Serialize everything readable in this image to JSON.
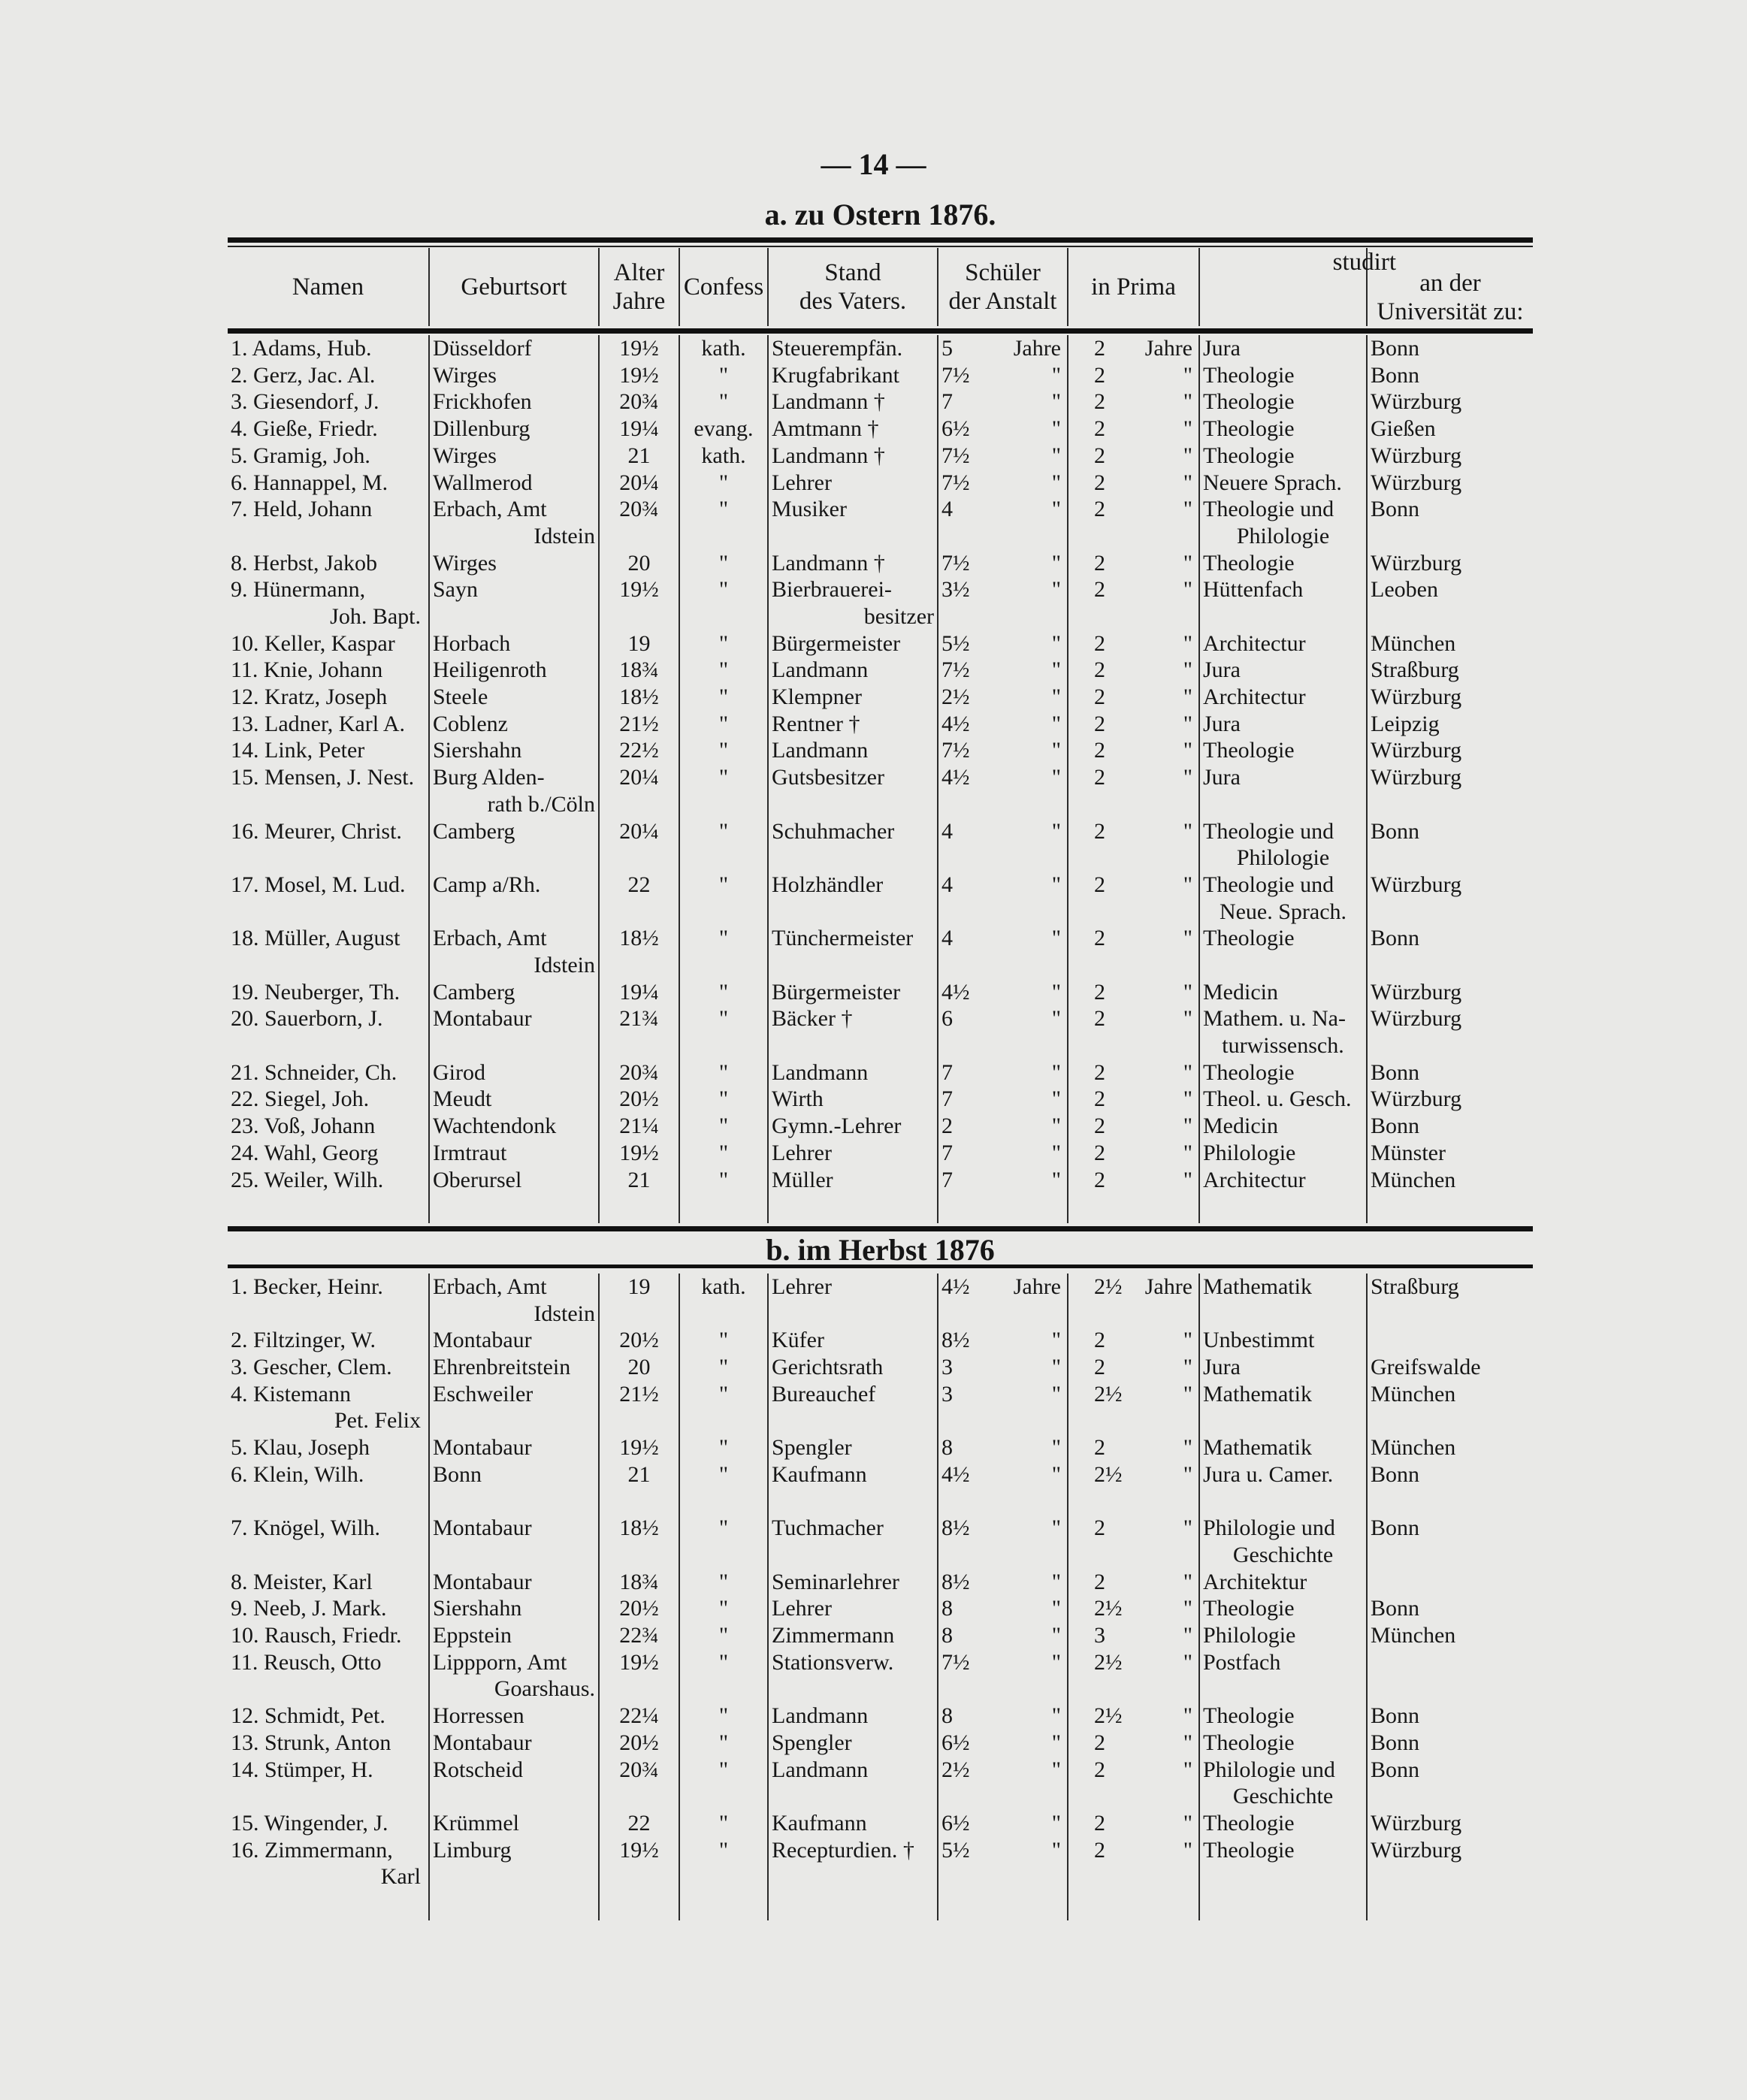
{
  "page_number": "— 14 —",
  "section_a": {
    "title": "a. zu Ostern 1876."
  },
  "section_b": {
    "title": "b. im Herbst 1876"
  },
  "headers": {
    "name": "Namen",
    "birthplace": "Geburtsort",
    "age_1": "Alter",
    "age_2": "Jahre",
    "confession": "Confess",
    "father_1": "Stand",
    "father_2": "des Vaters.",
    "school_1": "Schüler",
    "school_2": "der Anstalt",
    "prima": "in Prima",
    "studied": "studirt",
    "university_1": "an der",
    "university_2": "Universität zu:"
  },
  "rows_a": [
    {
      "no": "1.",
      "name": "Adams, Hub.",
      "place": "Düsseldorf",
      "age": "19½",
      "conf": "kath.",
      "father": "Steuerempfän.",
      "school": "5",
      "school_unit": "Jahre",
      "prima": "2",
      "prima_unit": "Jahre",
      "subject": "Jura",
      "univ": "Bonn"
    },
    {
      "no": "2.",
      "name": "Gerz, Jac. Al.",
      "place": "Wirges",
      "age": "19½",
      "conf": "\"",
      "father": "Krugfabrikant",
      "school": "7½",
      "school_unit": "\"",
      "prima": "2",
      "prima_unit": "\"",
      "subject": "Theologie",
      "univ": "Bonn"
    },
    {
      "no": "3.",
      "name": "Giesendorf, J.",
      "place": "Frickhofen",
      "age": "20¾",
      "conf": "\"",
      "father": "Landmann †",
      "school": "7",
      "school_unit": "\"",
      "prima": "2",
      "prima_unit": "\"",
      "subject": "Theologie",
      "univ": "Würzburg"
    },
    {
      "no": "4.",
      "name": "Gieße, Friedr.",
      "place": "Dillenburg",
      "age": "19¼",
      "conf": "evang.",
      "father": "Amtmann †",
      "school": "6½",
      "school_unit": "\"",
      "prima": "2",
      "prima_unit": "\"",
      "subject": "Theologie",
      "univ": "Gießen"
    },
    {
      "no": "5.",
      "name": "Gramig, Joh.",
      "place": "Wirges",
      "age": "21",
      "conf": "kath.",
      "father": "Landmann †",
      "school": "7½",
      "school_unit": "\"",
      "prima": "2",
      "prima_unit": "\"",
      "subject": "Theologie",
      "univ": "Würzburg"
    },
    {
      "no": "6.",
      "name": "Hannappel, M.",
      "place": "Wallmerod",
      "age": "20¼",
      "conf": "\"",
      "father": "Lehrer",
      "school": "7½",
      "school_unit": "\"",
      "prima": "2",
      "prima_unit": "\"",
      "subject": "Neuere Sprach.",
      "univ": "Würzburg"
    },
    {
      "no": "7.",
      "name": "Held, Johann",
      "place": "Erbach, Amt",
      "place2": "Idstein",
      "age": "20¾",
      "conf": "\"",
      "father": "Musiker",
      "school": "4",
      "school_unit": "\"",
      "prima": "2",
      "prima_unit": "\"",
      "subject": "Theologie und",
      "subject2": "Philologie",
      "univ": "Bonn"
    },
    {
      "no": "8.",
      "name": "Herbst, Jakob",
      "place": "Wirges",
      "age": "20",
      "conf": "\"",
      "father": "Landmann †",
      "school": "7½",
      "school_unit": "\"",
      "prima": "2",
      "prima_unit": "\"",
      "subject": "Theologie",
      "univ": "Würzburg"
    },
    {
      "no": "9.",
      "name": "Hünermann,",
      "name2": "Joh. Bapt.",
      "place": "Sayn",
      "age": "19½",
      "conf": "\"",
      "father": "Bierbrauerei-",
      "father2": "besitzer",
      "school": "3½",
      "school_unit": "\"",
      "prima": "2",
      "prima_unit": "\"",
      "subject": "Hüttenfach",
      "univ": "Leoben"
    },
    {
      "no": "10.",
      "name": "Keller, Kaspar",
      "place": "Horbach",
      "age": "19",
      "conf": "\"",
      "father": "Bürgermeister",
      "school": "5½",
      "school_unit": "\"",
      "prima": "2",
      "prima_unit": "\"",
      "subject": "Architectur",
      "univ": "München"
    },
    {
      "no": "11.",
      "name": "Knie, Johann",
      "place": "Heiligenroth",
      "age": "18¾",
      "conf": "\"",
      "father": "Landmann",
      "school": "7½",
      "school_unit": "\"",
      "prima": "2",
      "prima_unit": "\"",
      "subject": "Jura",
      "univ": "Straßburg"
    },
    {
      "no": "12.",
      "name": "Kratz, Joseph",
      "place": "Steele",
      "age": "18½",
      "conf": "\"",
      "father": "Klempner",
      "school": "2½",
      "school_unit": "\"",
      "prima": "2",
      "prima_unit": "\"",
      "subject": "Architectur",
      "univ": "Würzburg"
    },
    {
      "no": "13.",
      "name": "Ladner, Karl A.",
      "place": "Coblenz",
      "age": "21½",
      "conf": "\"",
      "father": "Rentner †",
      "school": "4½",
      "school_unit": "\"",
      "prima": "2",
      "prima_unit": "\"",
      "subject": "Jura",
      "univ": "Leipzig"
    },
    {
      "no": "14.",
      "name": "Link, Peter",
      "place": "Siershahn",
      "age": "22½",
      "conf": "\"",
      "father": "Landmann",
      "school": "7½",
      "school_unit": "\"",
      "prima": "2",
      "prima_unit": "\"",
      "subject": "Theologie",
      "univ": "Würzburg"
    },
    {
      "no": "15.",
      "name": "Mensen, J. Nest.",
      "place": "Burg Alden-",
      "place2": "rath b./Cöln",
      "age": "20¼",
      "conf": "\"",
      "father": "Gutsbesitzer",
      "school": "4½",
      "school_unit": "\"",
      "prima": "2",
      "prima_unit": "\"",
      "subject": "Jura",
      "univ": "Würzburg"
    },
    {
      "no": "16.",
      "name": "Meurer, Christ.",
      "place": "Camberg",
      "age": "20¼",
      "conf": "\"",
      "father": "Schuhmacher",
      "school": "4",
      "school_unit": "\"",
      "prima": "2",
      "prima_unit": "\"",
      "subject": "Theologie und",
      "subject2": "Philologie",
      "univ": "Bonn"
    },
    {
      "no": "17.",
      "name": "Mosel, M. Lud.",
      "place": "Camp a/Rh.",
      "age": "22",
      "conf": "\"",
      "father": "Holzhändler",
      "school": "4",
      "school_unit": "\"",
      "prima": "2",
      "prima_unit": "\"",
      "subject": "Theologie und",
      "subject2": "Neue. Sprach.",
      "univ": "Würzburg"
    },
    {
      "no": "18.",
      "name": "Müller, August",
      "place": "Erbach, Amt",
      "place2": "Idstein",
      "age": "18½",
      "conf": "\"",
      "father": "Tünchermeister",
      "school": "4",
      "school_unit": "\"",
      "prima": "2",
      "prima_unit": "\"",
      "subject": "Theologie",
      "univ": "Bonn"
    },
    {
      "no": "19.",
      "name": "Neuberger, Th.",
      "place": "Camberg",
      "age": "19¼",
      "conf": "\"",
      "father": "Bürgermeister",
      "school": "4½",
      "school_unit": "\"",
      "prima": "2",
      "prima_unit": "\"",
      "subject": "Medicin",
      "univ": "Würzburg"
    },
    {
      "no": "20.",
      "name": "Sauerborn, J.",
      "place": "Montabaur",
      "age": "21¾",
      "conf": "\"",
      "father": "Bäcker †",
      "school": "6",
      "school_unit": "\"",
      "prima": "2",
      "prima_unit": "\"",
      "subject": "Mathem. u. Na-",
      "subject2": "turwissensch.",
      "univ": "Würzburg"
    },
    {
      "no": "21.",
      "name": "Schneider, Ch.",
      "place": "Girod",
      "age": "20¾",
      "conf": "\"",
      "father": "Landmann",
      "school": "7",
      "school_unit": "\"",
      "prima": "2",
      "prima_unit": "\"",
      "subject": "Theologie",
      "univ": "Bonn"
    },
    {
      "no": "22.",
      "name": "Siegel, Joh.",
      "place": "Meudt",
      "age": "20½",
      "conf": "\"",
      "father": "Wirth",
      "school": "7",
      "school_unit": "\"",
      "prima": "2",
      "prima_unit": "\"",
      "subject": "Theol. u. Gesch.",
      "univ": "Würzburg"
    },
    {
      "no": "23.",
      "name": "Voß, Johann",
      "place": "Wachtendonk",
      "age": "21¼",
      "conf": "\"",
      "father": "Gymn.-Lehrer",
      "school": "2",
      "school_unit": "\"",
      "prima": "2",
      "prima_unit": "\"",
      "subject": "Medicin",
      "univ": "Bonn"
    },
    {
      "no": "24.",
      "name": "Wahl, Georg",
      "place": "Irmtraut",
      "age": "19½",
      "conf": "\"",
      "father": "Lehrer",
      "school": "7",
      "school_unit": "\"",
      "prima": "2",
      "prima_unit": "\"",
      "subject": "Philologie",
      "univ": "Münster"
    },
    {
      "no": "25.",
      "name": "Weiler, Wilh.",
      "place": "Oberursel",
      "age": "21",
      "conf": "\"",
      "father": "Müller",
      "school": "7",
      "school_unit": "\"",
      "prima": "2",
      "prima_unit": "\"",
      "subject": "Architectur",
      "univ": "München"
    }
  ],
  "rows_b": [
    {
      "no": "1.",
      "name": "Becker, Heinr.",
      "place": "Erbach, Amt",
      "place2": "Idstein",
      "age": "19",
      "conf": "kath.",
      "father": "Lehrer",
      "school": "4½",
      "school_unit": "Jahre",
      "prima": "2½",
      "prima_unit": "Jahre",
      "subject": "Mathematik",
      "univ": "Straßburg"
    },
    {
      "no": "2.",
      "name": "Filtzinger, W.",
      "place": "Montabaur",
      "age": "20½",
      "conf": "\"",
      "father": "Küfer",
      "school": "8½",
      "school_unit": "\"",
      "prima": "2",
      "prima_unit": "\"",
      "subject": "Unbestimmt",
      "univ": ""
    },
    {
      "no": "3.",
      "name": "Gescher, Clem.",
      "place": "Ehrenbreitstein",
      "age": "20",
      "conf": "\"",
      "father": "Gerichtsrath",
      "school": "3",
      "school_unit": "\"",
      "prima": "2",
      "prima_unit": "\"",
      "subject": "Jura",
      "univ": "Greifswalde"
    },
    {
      "no": "4.",
      "name": "Kistemann",
      "name2": "Pet. Felix",
      "place": "Eschweiler",
      "age": "21½",
      "conf": "\"",
      "father": "Bureauchef",
      "school": "3",
      "school_unit": "\"",
      "prima": "2½",
      "prima_unit": "\"",
      "subject": "Mathematik",
      "univ": "München"
    },
    {
      "no": "5.",
      "name": "Klau, Joseph",
      "place": "Montabaur",
      "age": "19½",
      "conf": "\"",
      "father": "Spengler",
      "school": "8",
      "school_unit": "\"",
      "prima": "2",
      "prima_unit": "\"",
      "subject": "Mathematik",
      "univ": "München"
    },
    {
      "no": "6.",
      "name": "Klein, Wilh.",
      "place": "Bonn",
      "age": "21",
      "conf": "\"",
      "father": "Kaufmann",
      "school": "4½",
      "school_unit": "\"",
      "prima": "2½",
      "prima_unit": "\"",
      "subject": "Jura u. Camer.",
      "univ": "Bonn"
    },
    {
      "no": "7.",
      "name": "Knögel, Wilh.",
      "place": "Montabaur",
      "age": "18½",
      "conf": "\"",
      "father": "Tuchmacher",
      "school": "8½",
      "school_unit": "\"",
      "prima": "2",
      "prima_unit": "\"",
      "subject": "Philologie und",
      "subject2": "Geschichte",
      "univ": "Bonn"
    },
    {
      "no": "8.",
      "name": "Meister, Karl",
      "place": "Montabaur",
      "age": "18¾",
      "conf": "\"",
      "father": "Seminarlehrer",
      "school": "8½",
      "school_unit": "\"",
      "prima": "2",
      "prima_unit": "\"",
      "subject": "Architektur",
      "univ": ""
    },
    {
      "no": "9.",
      "name": "Neeb, J. Mark.",
      "place": "Siershahn",
      "age": "20½",
      "conf": "\"",
      "father": "Lehrer",
      "school": "8",
      "school_unit": "\"",
      "prima": "2½",
      "prima_unit": "\"",
      "subject": "Theologie",
      "univ": "Bonn"
    },
    {
      "no": "10.",
      "name": "Rausch, Friedr.",
      "place": "Eppstein",
      "age": "22¾",
      "conf": "\"",
      "father": "Zimmermann",
      "school": "8",
      "school_unit": "\"",
      "prima": "3",
      "prima_unit": "\"",
      "subject": "Philologie",
      "univ": "München"
    },
    {
      "no": "11.",
      "name": "Reusch, Otto",
      "place": "Lippporn, Amt",
      "place2": "Goarshaus.",
      "age": "19½",
      "conf": "\"",
      "father": "Stationsverw.",
      "school": "7½",
      "school_unit": "\"",
      "prima": "2½",
      "prima_unit": "\"",
      "subject": "Postfach",
      "univ": ""
    },
    {
      "no": "12.",
      "name": "Schmidt, Pet.",
      "place": "Horressen",
      "age": "22¼",
      "conf": "\"",
      "father": "Landmann",
      "school": "8",
      "school_unit": "\"",
      "prima": "2½",
      "prima_unit": "\"",
      "subject": "Theologie",
      "univ": "Bonn"
    },
    {
      "no": "13.",
      "name": "Strunk, Anton",
      "place": "Montabaur",
      "age": "20½",
      "conf": "\"",
      "father": "Spengler",
      "school": "6½",
      "school_unit": "\"",
      "prima": "2",
      "prima_unit": "\"",
      "subject": "Theologie",
      "univ": "Bonn"
    },
    {
      "no": "14.",
      "name": "Stümper, H.",
      "place": "Rotscheid",
      "age": "20¾",
      "conf": "\"",
      "father": "Landmann",
      "school": "2½",
      "school_unit": "\"",
      "prima": "2",
      "prima_unit": "\"",
      "subject": "Philologie und",
      "subject2": "Geschichte",
      "univ": "Bonn"
    },
    {
      "no": "15.",
      "name": "Wingender, J.",
      "place": "Krümmel",
      "age": "22",
      "conf": "\"",
      "father": "Kaufmann",
      "school": "6½",
      "school_unit": "\"",
      "prima": "2",
      "prima_unit": "\"",
      "subject": "Theologie",
      "univ": "Würzburg"
    },
    {
      "no": "16.",
      "name": "Zimmermann,",
      "name2": "Karl",
      "place": "Limburg",
      "age": "19½",
      "conf": "\"",
      "father": "Receptur­dien. †",
      "school": "5½",
      "school_unit": "\"",
      "prima": "2",
      "prima_unit": "\"",
      "subject": "Theologie",
      "univ": "Würzburg"
    }
  ]
}
